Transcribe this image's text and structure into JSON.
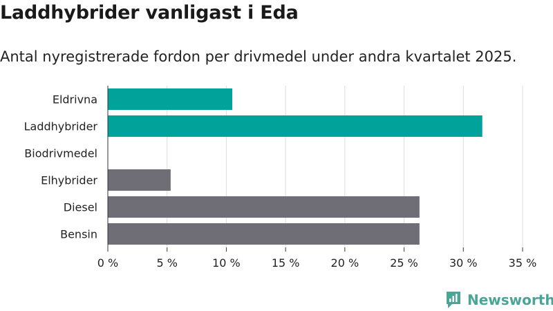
{
  "title": "Laddhybrider vanligast i Eda",
  "subtitle": "Antal nyregistrerade fordon per drivmedel under andra kvartalet 2025.",
  "brand": {
    "name": "Newsworthy",
    "icon": "newsworthy-logo-icon"
  },
  "colors": {
    "highlight": "#00a29a",
    "default": "#6f6e76",
    "grid": "#dddddd",
    "brand": "#4aa597"
  },
  "chart_data": {
    "type": "bar",
    "orientation": "horizontal",
    "title": "Laddhybrider vanligast i Eda",
    "subtitle": "Antal nyregistrerade fordon per drivmedel under andra kvartalet 2025.",
    "xlabel": "",
    "ylabel": "",
    "categories": [
      "Eldrivna",
      "Laddhybrider",
      "Biodrivmedel",
      "Elhybrider",
      "Diesel",
      "Bensin"
    ],
    "values": [
      10.5,
      31.6,
      0,
      5.3,
      26.3,
      26.3
    ],
    "highlight": [
      true,
      true,
      false,
      false,
      false,
      false
    ],
    "xlim": [
      0,
      35
    ],
    "ticks": [
      0,
      5,
      10,
      15,
      20,
      25,
      30,
      35
    ],
    "tick_labels": [
      "0 %",
      "5 %",
      "10 %",
      "15 %",
      "20 %",
      "25 %",
      "30 %",
      "35 %"
    ],
    "grid": true,
    "legend": "none"
  }
}
